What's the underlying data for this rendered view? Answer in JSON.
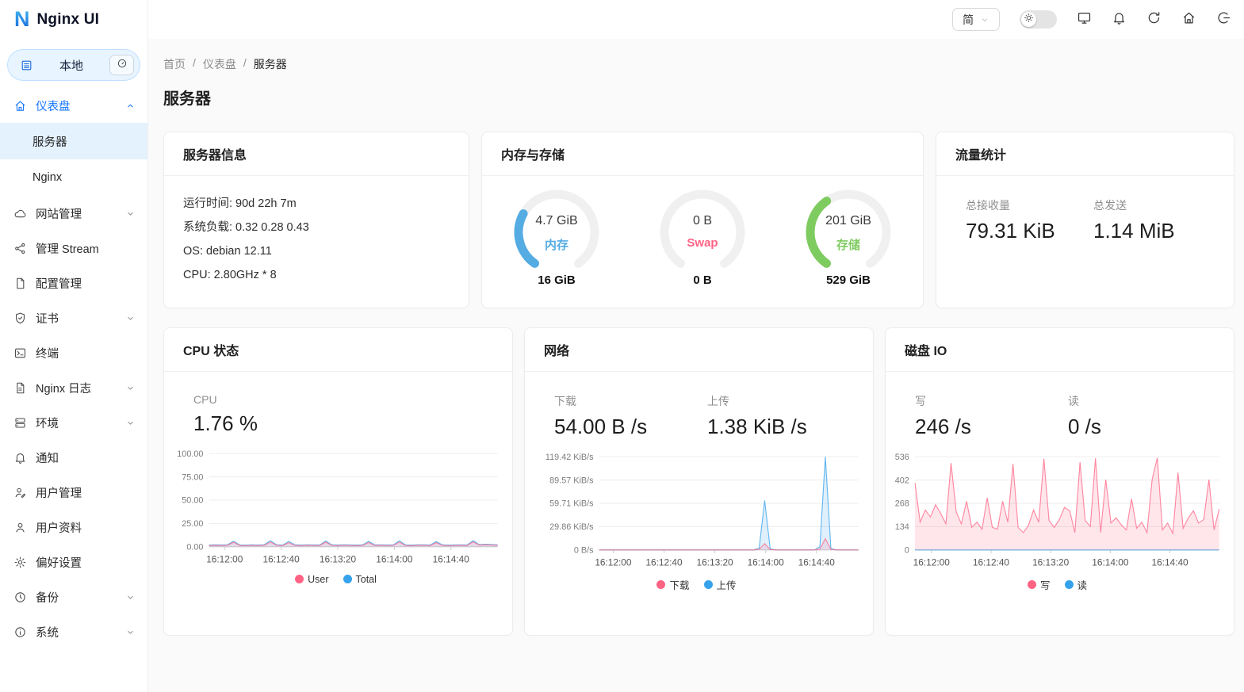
{
  "brand": {
    "logo_letter": "N",
    "title": "Nginx UI"
  },
  "env_selector": {
    "label": "本地"
  },
  "header": {
    "lang": "简",
    "icons": [
      {
        "key": "display",
        "icon": "monitor-icon"
      },
      {
        "key": "notifications",
        "icon": "bell-icon"
      },
      {
        "key": "reload",
        "icon": "reload-icon"
      },
      {
        "key": "home",
        "icon": "home-icon"
      },
      {
        "key": "logout",
        "icon": "logout-icon"
      }
    ]
  },
  "breadcrumb": [
    "首页",
    "仪表盘",
    "服务器"
  ],
  "page_title": "服务器",
  "sidebar": {
    "items": [
      {
        "key": "dashboard",
        "icon": "home-icon",
        "label": "仪表盘",
        "chevron": "up",
        "active": true,
        "children": [
          {
            "key": "server",
            "label": "服务器",
            "selected": true
          },
          {
            "key": "nginx",
            "label": "Nginx",
            "selected": false
          }
        ]
      },
      {
        "key": "sites",
        "icon": "cloud-icon",
        "label": "网站管理",
        "chevron": "down"
      },
      {
        "key": "stream",
        "icon": "share-icon",
        "label": "管理 Stream"
      },
      {
        "key": "config",
        "icon": "file-icon",
        "label": "配置管理"
      },
      {
        "key": "certificates",
        "icon": "shield-icon",
        "label": "证书",
        "chevron": "down"
      },
      {
        "key": "terminal",
        "icon": "terminal-icon",
        "label": "终端"
      },
      {
        "key": "nginx-log",
        "icon": "file-text-icon",
        "label": "Nginx 日志",
        "chevron": "down"
      },
      {
        "key": "environments",
        "icon": "server-icon",
        "label": "环境",
        "chevron": "down"
      },
      {
        "key": "notifications",
        "icon": "bell-icon",
        "label": "通知"
      },
      {
        "key": "user-management",
        "icon": "user-edit-icon",
        "label": "用户管理"
      },
      {
        "key": "profile",
        "icon": "user-icon",
        "label": "用户资料"
      },
      {
        "key": "preferences",
        "icon": "gear-icon",
        "label": "偏好设置"
      },
      {
        "key": "backup",
        "icon": "history-icon",
        "label": "备份",
        "chevron": "down"
      },
      {
        "key": "system",
        "icon": "info-icon",
        "label": "系统",
        "chevron": "down"
      }
    ]
  },
  "cards": {
    "server_info": {
      "title": "服务器信息",
      "lines": [
        "运行时间: 90d 22h 7m",
        "系统负载: 0.32 0.28 0.43",
        "OS: debian 12.11",
        "CPU: 2.80GHz * 8"
      ]
    },
    "memory": {
      "title": "内存与存储",
      "gauges": [
        {
          "value": "4.7 GiB",
          "label": "内存",
          "total": "16 GiB",
          "percent": 29,
          "color": "#54ace3"
        },
        {
          "value": "0 B",
          "label": "Swap",
          "total": "0 B",
          "percent": 0,
          "color": "#ff6384"
        },
        {
          "value": "201 GiB",
          "label": "存储",
          "total": "529 GiB",
          "percent": 38,
          "color": "#7ecb5f"
        }
      ]
    },
    "traffic": {
      "title": "流量统计",
      "stats": [
        {
          "label": "总接收量",
          "value": "79.31 KiB"
        },
        {
          "label": "总发送",
          "value": "1.14 MiB"
        }
      ]
    },
    "cpu": {
      "title": "CPU 状态",
      "stats": [
        {
          "label": "CPU",
          "value": "1.76 %"
        }
      ]
    },
    "network": {
      "title": "网络",
      "stats": [
        {
          "label": "下载",
          "value": "54.00 B /s"
        },
        {
          "label": "上传",
          "value": "1.38 KiB /s"
        }
      ]
    },
    "disk": {
      "title": "磁盘 IO",
      "stats": [
        {
          "label": "写",
          "value": "246 /s"
        },
        {
          "label": "读",
          "value": "0 /s"
        }
      ]
    }
  },
  "chart_data": [
    {
      "id": "cpu",
      "type": "area",
      "title": "CPU 状态",
      "ylim": [
        0,
        100
      ],
      "yticks": [
        "100.00",
        "75.00",
        "50.00",
        "25.00",
        "0.00"
      ],
      "xticks": [
        "16:12:00",
        "16:12:40",
        "16:13:20",
        "16:14:00",
        "16:14:40"
      ],
      "legend_position": "bottom",
      "series": [
        {
          "name": "User",
          "color": "#ff6384",
          "values": [
            1.2,
            1.5,
            1.3,
            1.6,
            4.8,
            1.4,
            1.2,
            1.5,
            1.3,
            1.7,
            5.2,
            1.6,
            1.3,
            4.5,
            1.5,
            1.2,
            1.6,
            1.4,
            1.3,
            5.0,
            1.5,
            1.3,
            1.6,
            1.4,
            1.2,
            1.5,
            4.6,
            1.4,
            1.6,
            1.3,
            1.5,
            5.1,
            1.4,
            1.2,
            1.6,
            1.5,
            1.3,
            4.4,
            1.5,
            1.2,
            1.4,
            1.6,
            1.3,
            5.3,
            1.8,
            2.2,
            1.9,
            1.6
          ]
        },
        {
          "name": "Total",
          "color": "#36a2eb",
          "values": [
            1.8,
            2.1,
            1.9,
            2.2,
            6.0,
            2.0,
            1.8,
            2.1,
            1.9,
            2.3,
            6.5,
            2.2,
            1.9,
            5.8,
            2.1,
            1.8,
            2.2,
            2.0,
            1.9,
            6.2,
            2.1,
            1.9,
            2.2,
            2.0,
            1.8,
            2.1,
            5.9,
            2.0,
            2.2,
            1.9,
            2.1,
            6.4,
            2.0,
            1.8,
            2.2,
            2.1,
            1.9,
            5.7,
            2.1,
            1.8,
            2.0,
            2.2,
            1.9,
            6.6,
            2.4,
            2.8,
            2.5,
            2.2
          ]
        }
      ]
    },
    {
      "id": "network",
      "type": "area",
      "title": "网络",
      "ylim": [
        0,
        119.42
      ],
      "yticks": [
        "119.42 KiB/s",
        "89.57 KiB/s",
        "59.71 KiB/s",
        "29.86 KiB/s",
        "0 B/s"
      ],
      "xticks": [
        "16:12:00",
        "16:12:40",
        "16:13:20",
        "16:14:00",
        "16:14:40"
      ],
      "legend_position": "bottom",
      "series": [
        {
          "name": "下载",
          "color": "#ff6384",
          "values": [
            0,
            0,
            0,
            0,
            0,
            0,
            0,
            0,
            0,
            0,
            0,
            0,
            0,
            0,
            0,
            0,
            0,
            0,
            0,
            0,
            0,
            0,
            0,
            0,
            0,
            0,
            0,
            0,
            0,
            0.8,
            8.2,
            0.5,
            0,
            0,
            0,
            0,
            0,
            0,
            0,
            0,
            1.2,
            14.5,
            0.8,
            0,
            0,
            0,
            0,
            0
          ]
        },
        {
          "name": "上传",
          "color": "#36a2eb",
          "values": [
            0,
            0,
            0,
            0,
            0,
            0,
            0,
            0,
            0,
            0,
            0,
            0,
            0,
            0,
            0,
            0,
            0,
            0,
            0,
            0,
            0,
            0,
            0,
            0,
            0,
            0,
            0,
            0,
            0,
            2.5,
            63.5,
            1.5,
            0,
            0,
            0,
            0,
            0,
            0,
            0,
            0,
            4,
            119.42,
            2,
            0,
            0,
            0,
            0,
            0
          ]
        }
      ]
    },
    {
      "id": "disk",
      "type": "area",
      "title": "磁盘 IO",
      "ylim": [
        0,
        536
      ],
      "yticks": [
        "536",
        "402",
        "268",
        "134",
        "0"
      ],
      "xticks": [
        "16:12:00",
        "16:12:40",
        "16:13:20",
        "16:14:00",
        "16:14:40"
      ],
      "legend_position": "bottom",
      "series": [
        {
          "name": "写",
          "color": "#ff6384",
          "values": [
            385,
            160,
            230,
            190,
            260,
            210,
            150,
            500,
            220,
            150,
            280,
            130,
            160,
            120,
            300,
            130,
            120,
            280,
            160,
            495,
            130,
            100,
            140,
            230,
            160,
            525,
            170,
            130,
            175,
            245,
            225,
            100,
            505,
            170,
            135,
            528,
            100,
            405,
            155,
            185,
            145,
            115,
            295,
            125,
            160,
            100,
            405,
            530,
            115,
            155,
            95,
            445,
            125,
            185,
            225,
            155,
            175,
            405,
            115,
            235
          ]
        },
        {
          "name": "读",
          "color": "#36a2eb",
          "values": [
            0,
            0,
            0,
            0,
            0,
            0,
            0,
            0,
            0,
            0,
            0,
            0,
            0,
            0,
            0,
            0,
            0,
            0,
            0,
            0,
            0,
            0,
            0,
            0,
            0,
            0,
            0,
            0,
            0,
            0,
            0,
            0,
            0,
            0,
            0,
            0,
            0,
            0,
            0,
            0,
            0,
            0,
            0,
            0,
            0,
            0,
            0,
            0,
            0,
            0,
            0,
            0,
            0,
            0,
            0,
            0,
            0,
            0,
            0,
            0
          ]
        }
      ]
    }
  ]
}
